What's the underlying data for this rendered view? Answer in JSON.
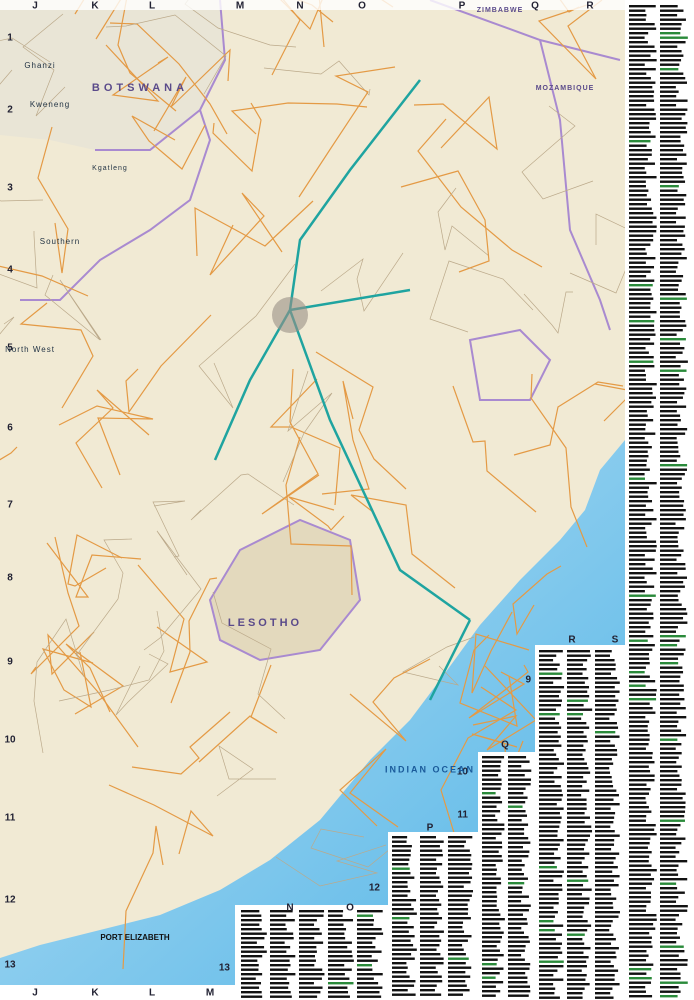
{
  "grid": {
    "columns_top": [
      "J",
      "K",
      "L",
      "M",
      "N",
      "O",
      "P",
      "Q",
      "R"
    ],
    "columns_bottom": [
      "J",
      "K",
      "L",
      "M"
    ],
    "rows": [
      "1",
      "2",
      "3",
      "4",
      "5",
      "6",
      "7",
      "8",
      "9",
      "10",
      "11",
      "12",
      "13"
    ],
    "inset_columns": [
      "N",
      "O",
      "P",
      "Q",
      "R",
      "S"
    ],
    "inset_rows": [
      "9",
      "10",
      "11",
      "12",
      "13"
    ]
  },
  "labels": [
    "BOTSWANA",
    "Ghanzi",
    "Kweneng",
    "Kgatleng",
    "Southern",
    "North West",
    "ZIMBABWE",
    "MOZAMBIQUE",
    "LESOTHO",
    "INDIAN OCEAN",
    "PORT ELIZABETH"
  ]
}
